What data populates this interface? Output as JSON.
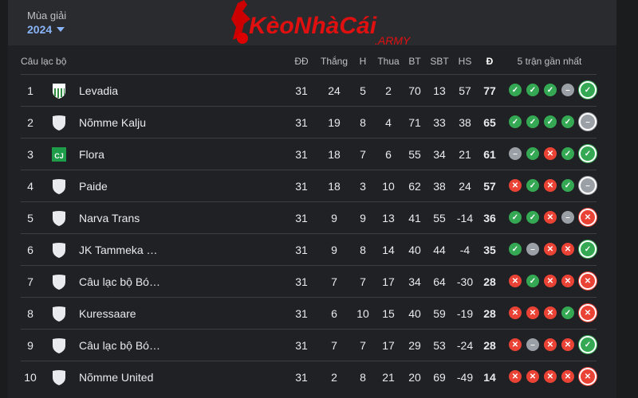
{
  "season": {
    "label": "Mùa giải",
    "value": "2024"
  },
  "logo_text": "KèoNhàCái .ARMY",
  "headers": {
    "club": "Câu lạc bộ",
    "played": "ĐĐ",
    "won": "Thắng",
    "draw": "H",
    "lost": "Thua",
    "gf": "BT",
    "ga": "SBT",
    "gd": "HS",
    "pts": "Đ",
    "form": "5 trận gần nhất"
  },
  "colors": {
    "win": "#34a853",
    "loss": "#ea4335",
    "draw": "#9aa0a6",
    "accent": "#8ab4f8"
  },
  "rows": [
    {
      "rank": "1",
      "club": "Levadia",
      "crest": "levadia",
      "played": "31",
      "won": "24",
      "draw": "5",
      "lost": "2",
      "gf": "70",
      "ga": "13",
      "gd": "57",
      "pts": "77",
      "form": [
        "W",
        "W",
        "W",
        "D",
        "W"
      ]
    },
    {
      "rank": "2",
      "club": "Nõmme Kalju",
      "crest": "generic",
      "played": "31",
      "won": "19",
      "draw": "8",
      "lost": "4",
      "gf": "71",
      "ga": "33",
      "gd": "38",
      "pts": "65",
      "form": [
        "W",
        "W",
        "W",
        "W",
        "D"
      ]
    },
    {
      "rank": "3",
      "club": "Flora",
      "crest": "flora",
      "played": "31",
      "won": "18",
      "draw": "7",
      "lost": "6",
      "gf": "55",
      "ga": "34",
      "gd": "21",
      "pts": "61",
      "form": [
        "D",
        "W",
        "L",
        "W",
        "W"
      ]
    },
    {
      "rank": "4",
      "club": "Paide",
      "crest": "generic",
      "played": "31",
      "won": "18",
      "draw": "3",
      "lost": "10",
      "gf": "62",
      "ga": "38",
      "gd": "24",
      "pts": "57",
      "form": [
        "L",
        "W",
        "L",
        "W",
        "D"
      ]
    },
    {
      "rank": "5",
      "club": "Narva Trans",
      "crest": "generic",
      "played": "31",
      "won": "9",
      "draw": "9",
      "lost": "13",
      "gf": "41",
      "ga": "55",
      "gd": "-14",
      "pts": "36",
      "form": [
        "W",
        "W",
        "L",
        "D",
        "L"
      ]
    },
    {
      "rank": "6",
      "club": "JK Tammeka …",
      "crest": "generic",
      "played": "31",
      "won": "9",
      "draw": "8",
      "lost": "14",
      "gf": "40",
      "ga": "44",
      "gd": "-4",
      "pts": "35",
      "form": [
        "W",
        "D",
        "L",
        "L",
        "W"
      ]
    },
    {
      "rank": "7",
      "club": "Câu lạc bộ Bó…",
      "crest": "generic",
      "played": "31",
      "won": "7",
      "draw": "7",
      "lost": "17",
      "gf": "34",
      "ga": "64",
      "gd": "-30",
      "pts": "28",
      "form": [
        "L",
        "W",
        "L",
        "L",
        "L"
      ]
    },
    {
      "rank": "8",
      "club": "Kuressaare",
      "crest": "generic",
      "played": "31",
      "won": "6",
      "draw": "10",
      "lost": "15",
      "gf": "40",
      "ga": "59",
      "gd": "-19",
      "pts": "28",
      "form": [
        "L",
        "L",
        "L",
        "W",
        "L"
      ]
    },
    {
      "rank": "9",
      "club": "Câu lạc bộ Bó…",
      "crest": "generic",
      "played": "31",
      "won": "7",
      "draw": "7",
      "lost": "17",
      "gf": "29",
      "ga": "53",
      "gd": "-24",
      "pts": "28",
      "form": [
        "L",
        "D",
        "L",
        "L",
        "W"
      ]
    },
    {
      "rank": "10",
      "club": "Nõmme United",
      "crest": "generic",
      "played": "31",
      "won": "2",
      "draw": "8",
      "lost": "21",
      "gf": "20",
      "ga": "69",
      "gd": "-49",
      "pts": "14",
      "form": [
        "L",
        "L",
        "L",
        "L",
        "L"
      ]
    }
  ]
}
